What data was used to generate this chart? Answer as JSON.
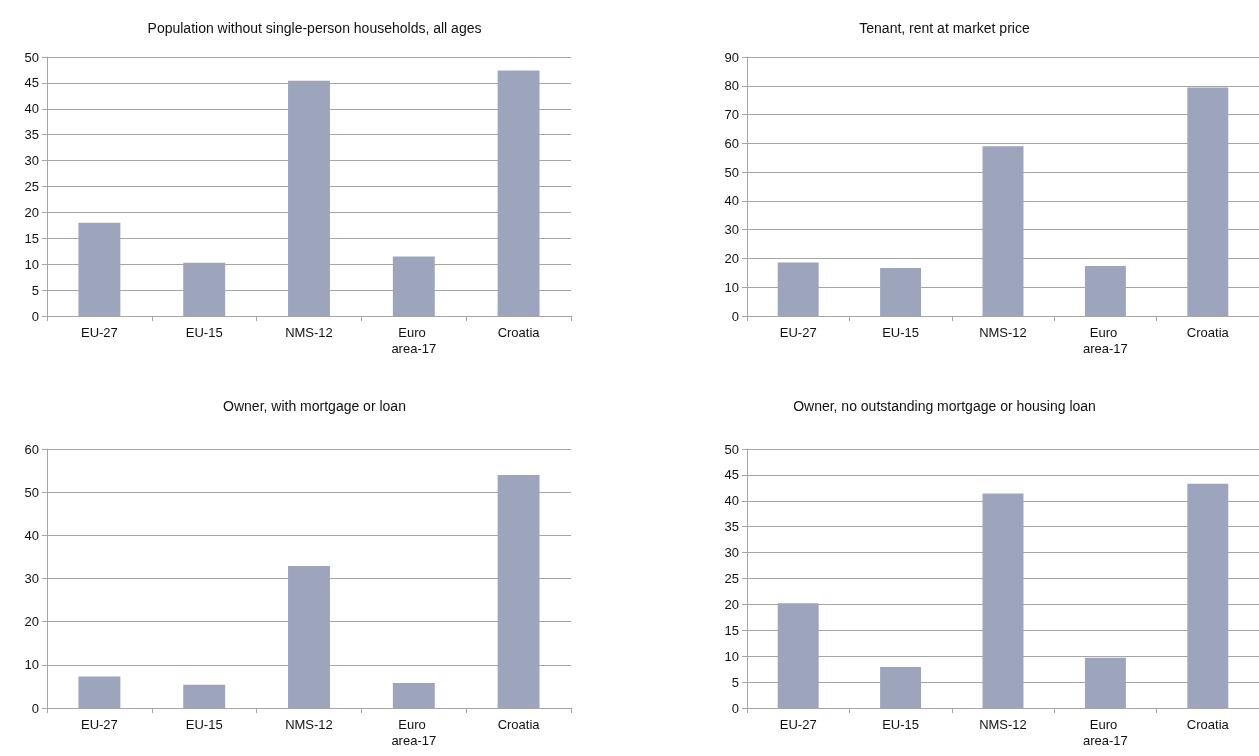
{
  "chart_data": [
    {
      "type": "bar",
      "title": "Population without single-person households, all ages",
      "categories": [
        "EU-27",
        "EU-15",
        "NMS-12",
        "Euro area-17",
        "Croatia"
      ],
      "values": [
        18.0,
        10.3,
        45.4,
        11.5,
        47.4
      ],
      "color": "#9da5bd",
      "ylim": [
        0,
        50
      ],
      "yticks": [
        0,
        5,
        10,
        15,
        20,
        25,
        30,
        35,
        40,
        45,
        50
      ],
      "grid": "y"
    },
    {
      "type": "bar",
      "title": "Tenant, rent at market price",
      "categories": [
        "EU-27",
        "EU-15",
        "NMS-12",
        "Euro area-17",
        "Croatia"
      ],
      "values": [
        18.6,
        16.7,
        59.0,
        17.4,
        79.4
      ],
      "color": "#9da5bd",
      "ylim": [
        0,
        90
      ],
      "yticks": [
        0,
        10,
        20,
        30,
        40,
        50,
        60,
        70,
        80,
        90
      ],
      "grid": "y"
    },
    {
      "type": "bar",
      "title": "Owner, with mortgage or loan",
      "categories": [
        "EU-27",
        "EU-15",
        "NMS-12",
        "Euro area-17",
        "Croatia"
      ],
      "values": [
        7.3,
        5.4,
        32.9,
        5.8,
        54.0
      ],
      "color": "#9da5bd",
      "ylim": [
        0,
        60
      ],
      "yticks": [
        0,
        10,
        20,
        30,
        40,
        50,
        60
      ],
      "grid": "y"
    },
    {
      "type": "bar",
      "title": "Owner, no outstanding mortgage or housing loan",
      "categories": [
        "EU-27",
        "EU-15",
        "NMS-12",
        "Euro area-17",
        "Croatia"
      ],
      "values": [
        20.2,
        7.9,
        41.4,
        9.7,
        43.3
      ],
      "color": "#9da5bd",
      "ylim": [
        0,
        50
      ],
      "yticks": [
        0,
        5,
        10,
        15,
        20,
        25,
        30,
        35,
        40,
        45,
        50
      ],
      "grid": "y"
    }
  ]
}
